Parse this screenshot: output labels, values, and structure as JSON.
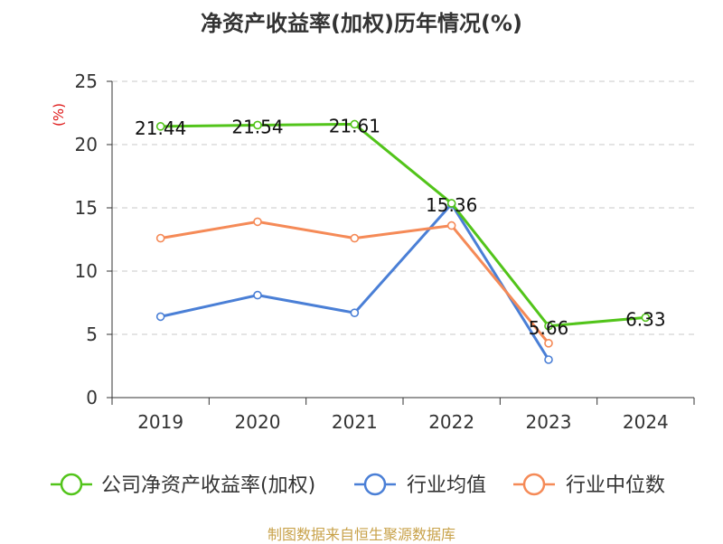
{
  "chart_data": {
    "type": "line",
    "title": "净资产收益率(加权)历年情况(%)",
    "ylabel": "(%)",
    "xlabel": "",
    "categories": [
      "2019",
      "2020",
      "2021",
      "2022",
      "2023",
      "2024"
    ],
    "ylim": [
      0,
      25
    ],
    "yticks": [
      0,
      5,
      10,
      15,
      20,
      25
    ],
    "grid": "horizontal dashed",
    "legend_position": "bottom",
    "series": [
      {
        "name": "公司净资产收益率(加权)",
        "color": "#52c41a",
        "values": [
          21.44,
          21.54,
          21.61,
          15.36,
          5.66,
          6.33
        ],
        "labels": [
          "21.44",
          "21.54",
          "21.61",
          "15.36",
          "5.66",
          "6.33"
        ]
      },
      {
        "name": "行业均值",
        "color": "#4a7fd6",
        "values": [
          6.4,
          8.1,
          6.7,
          15.3,
          3.0,
          null
        ]
      },
      {
        "name": "行业中位数",
        "color": "#f58a57",
        "values": [
          12.6,
          13.9,
          12.6,
          13.6,
          4.3,
          null
        ]
      }
    ]
  },
  "footer": {
    "source": "制图数据来自恒生聚源数据库"
  }
}
